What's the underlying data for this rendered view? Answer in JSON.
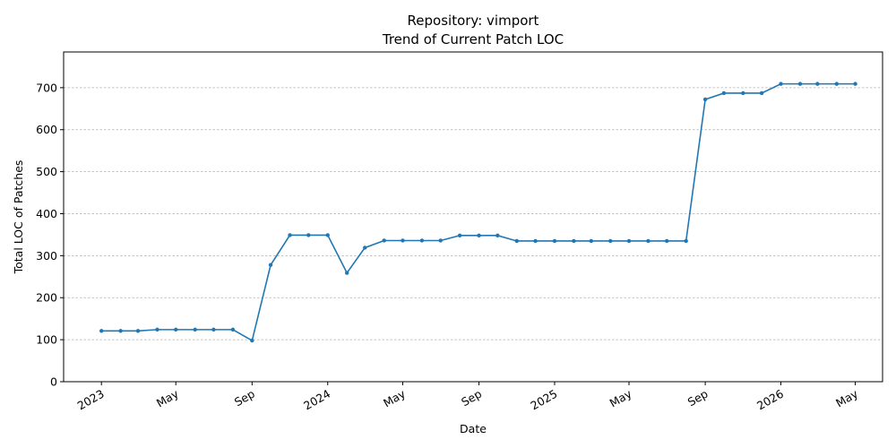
{
  "chart_data": {
    "type": "line",
    "title": "Repository: vimport",
    "subtitle": "Trend of Current Patch LOC",
    "xlabel": "Date",
    "ylabel": "Total LOC of Patches",
    "ylim": [
      0,
      785
    ],
    "xlim": [
      "2022-11-01",
      "2026-06-14"
    ],
    "grid": "horizontal",
    "y_ticks": [
      0,
      100,
      200,
      300,
      400,
      500,
      600,
      700
    ],
    "x_ticks": [
      {
        "date": "2023-01-01",
        "label": "2023"
      },
      {
        "date": "2023-05-01",
        "label": "May"
      },
      {
        "date": "2023-09-01",
        "label": "Sep"
      },
      {
        "date": "2024-01-01",
        "label": "2024"
      },
      {
        "date": "2024-05-01",
        "label": "May"
      },
      {
        "date": "2024-09-01",
        "label": "Sep"
      },
      {
        "date": "2025-01-01",
        "label": "2025"
      },
      {
        "date": "2025-05-01",
        "label": "May"
      },
      {
        "date": "2025-09-01",
        "label": "Sep"
      },
      {
        "date": "2026-01-01",
        "label": "2026"
      },
      {
        "date": "2026-05-01",
        "label": "May"
      }
    ],
    "series": [
      {
        "color": "#1f77b4",
        "x": [
          "2023-01-01",
          "2023-02-01",
          "2023-03-01",
          "2023-04-01",
          "2023-05-01",
          "2023-06-01",
          "2023-07-01",
          "2023-08-01",
          "2023-09-01",
          "2023-10-01",
          "2023-11-01",
          "2023-12-01",
          "2024-01-01",
          "2024-02-01",
          "2024-03-01",
          "2024-04-01",
          "2024-05-01",
          "2024-06-01",
          "2024-07-01",
          "2024-08-01",
          "2024-09-01",
          "2024-10-01",
          "2024-11-01",
          "2024-12-01",
          "2025-01-01",
          "2025-02-01",
          "2025-03-01",
          "2025-04-01",
          "2025-05-01",
          "2025-06-01",
          "2025-07-01",
          "2025-08-01",
          "2025-09-01",
          "2025-10-01",
          "2025-11-01",
          "2025-12-01",
          "2026-01-01",
          "2026-02-01",
          "2026-03-01",
          "2026-04-01",
          "2026-05-01"
        ],
        "values": [
          121,
          121,
          121,
          124,
          124,
          124,
          124,
          124,
          98,
          278,
          349,
          349,
          349,
          259,
          319,
          336,
          336,
          336,
          336,
          348,
          348,
          348,
          335,
          335,
          335,
          335,
          335,
          335,
          335,
          335,
          335,
          335,
          672,
          687,
          687,
          687,
          709,
          709,
          709,
          709,
          709
        ]
      }
    ]
  }
}
